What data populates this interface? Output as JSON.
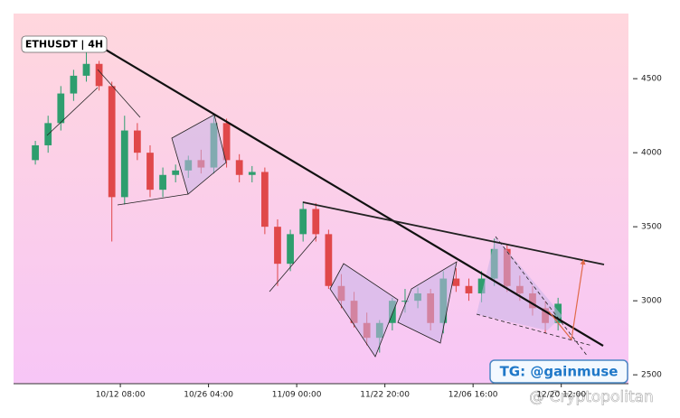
{
  "chart_data": {
    "type": "candlestick",
    "title": "ETHUSDT | 4H",
    "annotations": [
      "TG: @gainmuse",
      "@ Cryptopolitan"
    ],
    "x": [
      "09/29 00:00",
      "10/01 00:00",
      "10/03 00:00",
      "10/05 00:00",
      "10/07 00:00",
      "10/09 00:00",
      "10/11 00:00",
      "10/13 00:00",
      "10/15 00:00",
      "10/17 00:00",
      "10/19 00:00",
      "10/21 00:00",
      "10/23 00:00",
      "10/25 00:00",
      "10/27 00:00",
      "10/29 00:00",
      "10/31 00:00",
      "11/02 00:00",
      "11/04 00:00",
      "11/06 00:00",
      "11/08 00:00",
      "11/10 00:00",
      "11/12 00:00",
      "11/14 00:00",
      "11/16 00:00",
      "11/18 00:00",
      "11/20 00:00",
      "11/22 00:00",
      "11/24 00:00",
      "11/26 00:00",
      "11/28 00:00",
      "11/30 00:00",
      "12/02 00:00",
      "12/04 00:00",
      "12/06 00:00",
      "12/08 00:00",
      "12/10 00:00",
      "12/12 00:00",
      "12/14 00:00",
      "12/16 00:00",
      "12/18 00:00",
      "12/20 00:00"
    ],
    "open": [
      3950,
      4050,
      4200,
      4400,
      4520,
      4600,
      4450,
      3700,
      4150,
      4000,
      3750,
      3850,
      3880,
      3950,
      3900,
      4200,
      3950,
      3850,
      3870,
      3500,
      3250,
      3450,
      3620,
      3450,
      3100,
      3000,
      2850,
      2750,
      2850,
      3000,
      3000,
      3050,
      2850,
      3150,
      3100,
      3050,
      3150,
      3350,
      3100,
      3050,
      2950,
      2850
    ],
    "high": [
      4080,
      4250,
      4450,
      4560,
      4700,
      4620,
      4480,
      4250,
      4200,
      4050,
      3900,
      3920,
      3980,
      4020,
      4250,
      4230,
      3990,
      3910,
      3900,
      3550,
      3480,
      3670,
      3660,
      3480,
      3180,
      3060,
      2920,
      2870,
      3020,
      3080,
      3090,
      3080,
      3200,
      3220,
      3150,
      3200,
      3420,
      3380,
      3170,
      3100,
      3000,
      3020
    ],
    "low": [
      3920,
      4000,
      4150,
      4350,
      4480,
      4420,
      3400,
      3650,
      3950,
      3700,
      3700,
      3800,
      3830,
      3860,
      3860,
      3900,
      3800,
      3800,
      3450,
      3100,
      3200,
      3400,
      3400,
      3080,
      2950,
      2820,
      2700,
      2650,
      2800,
      2920,
      2950,
      2800,
      2780,
      3060,
      3000,
      2990,
      3100,
      3060,
      3000,
      2900,
      2780,
      2800
    ],
    "close": [
      4050,
      4200,
      4400,
      4520,
      4600,
      4450,
      3700,
      4150,
      4000,
      3750,
      3850,
      3880,
      3950,
      3900,
      4200,
      3950,
      3850,
      3870,
      3500,
      3250,
      3450,
      3620,
      3450,
      3100,
      3000,
      2850,
      2750,
      2850,
      3000,
      3000,
      3050,
      2850,
      3150,
      3100,
      3050,
      3150,
      3350,
      3100,
      3050,
      2950,
      2850,
      2980
    ],
    "up_color": "#2e9e6e",
    "down_color": "#e0484a",
    "xlim": [
      "09/25 14:00",
      "12/31 01:00"
    ],
    "xticks": [
      "10/12 08:00",
      "10/26 04:00",
      "11/09 00:00",
      "11/22 20:00",
      "12/06 16:00",
      "12/20 12:00"
    ],
    "ylim": [
      2440,
      4940
    ],
    "yticks": [
      2500,
      3000,
      3500,
      4000,
      4500
    ],
    "y_axis_side": "right"
  }
}
